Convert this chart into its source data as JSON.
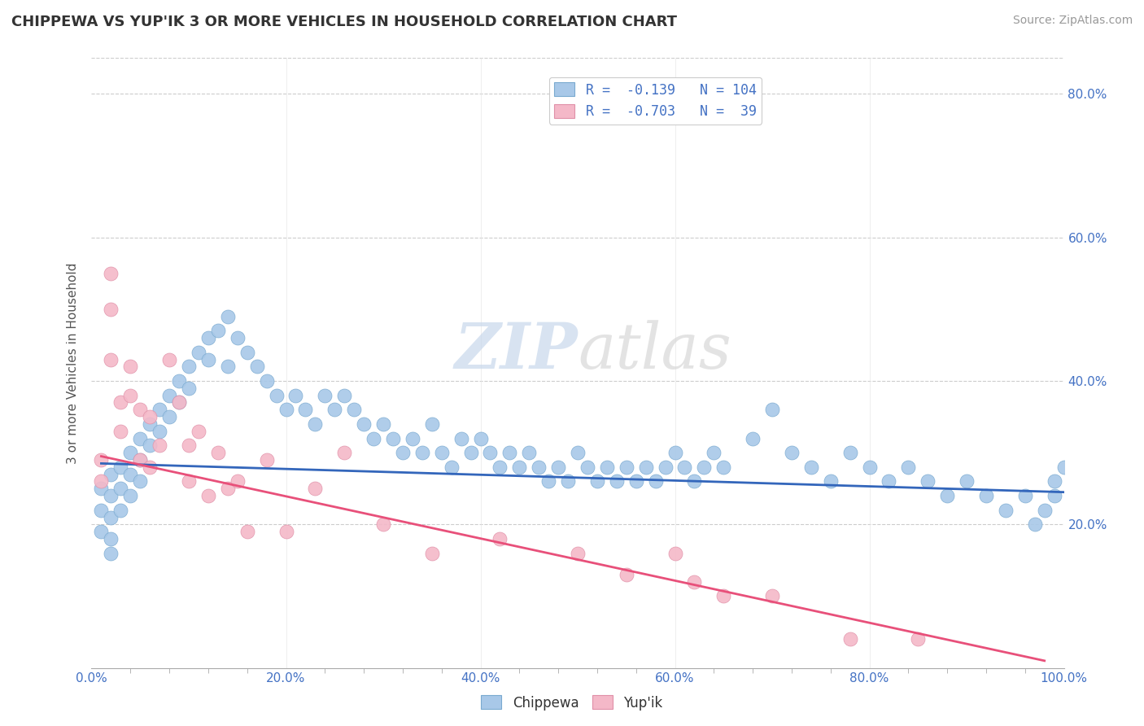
{
  "title": "CHIPPEWA VS YUP'IK 3 OR MORE VEHICLES IN HOUSEHOLD CORRELATION CHART",
  "source_text": "Source: ZipAtlas.com",
  "ylabel": "3 or more Vehicles in Household",
  "xlim": [
    0.0,
    1.0
  ],
  "ylim": [
    0.0,
    0.85
  ],
  "xtick_labels": [
    "0.0%",
    "",
    "",
    "",
    "",
    "",
    "",
    "",
    "",
    "",
    "20.0%",
    "",
    "",
    "",
    "",
    "",
    "",
    "",
    "",
    "",
    "40.0%",
    "",
    "",
    "",
    "",
    "",
    "",
    "",
    "",
    "",
    "60.0%",
    "",
    "",
    "",
    "",
    "",
    "",
    "",
    "",
    "",
    "80.0%",
    "",
    "",
    "",
    "",
    "",
    "",
    "",
    "",
    "",
    "100.0%"
  ],
  "xtick_vals": [
    0.0,
    0.02,
    0.04,
    0.06,
    0.08,
    0.1,
    0.12,
    0.14,
    0.16,
    0.18,
    0.2,
    0.22,
    0.24,
    0.26,
    0.28,
    0.3,
    0.32,
    0.34,
    0.36,
    0.38,
    0.4,
    0.42,
    0.44,
    0.46,
    0.48,
    0.5,
    0.52,
    0.54,
    0.56,
    0.58,
    0.6,
    0.62,
    0.64,
    0.66,
    0.68,
    0.7,
    0.72,
    0.74,
    0.76,
    0.78,
    0.8,
    0.82,
    0.84,
    0.86,
    0.88,
    0.9,
    0.92,
    0.94,
    0.96,
    0.98,
    1.0
  ],
  "ytick_vals": [
    0.2,
    0.4,
    0.6,
    0.8
  ],
  "ytick_labels": [
    "20.0%",
    "40.0%",
    "60.0%",
    "80.0%"
  ],
  "chippewa_color": "#A8C8E8",
  "chippewa_edge_color": "#7AAAD0",
  "yupik_color": "#F4B8C8",
  "yupik_edge_color": "#E090A8",
  "trend_chippewa_color": "#3366BB",
  "trend_yupik_color": "#E8507A",
  "watermark": "ZIPatlas",
  "background_color": "#FFFFFF",
  "grid_color": "#CCCCCC",
  "chippewa_x": [
    0.01,
    0.01,
    0.01,
    0.02,
    0.02,
    0.02,
    0.02,
    0.02,
    0.03,
    0.03,
    0.03,
    0.04,
    0.04,
    0.04,
    0.05,
    0.05,
    0.05,
    0.06,
    0.06,
    0.07,
    0.07,
    0.08,
    0.08,
    0.09,
    0.09,
    0.1,
    0.1,
    0.11,
    0.12,
    0.12,
    0.13,
    0.14,
    0.14,
    0.15,
    0.16,
    0.17,
    0.18,
    0.19,
    0.2,
    0.21,
    0.22,
    0.23,
    0.24,
    0.25,
    0.26,
    0.27,
    0.28,
    0.29,
    0.3,
    0.31,
    0.32,
    0.33,
    0.34,
    0.35,
    0.36,
    0.37,
    0.38,
    0.39,
    0.4,
    0.41,
    0.42,
    0.43,
    0.44,
    0.45,
    0.46,
    0.47,
    0.48,
    0.49,
    0.5,
    0.51,
    0.52,
    0.53,
    0.54,
    0.55,
    0.56,
    0.57,
    0.58,
    0.59,
    0.6,
    0.61,
    0.62,
    0.63,
    0.64,
    0.65,
    0.68,
    0.7,
    0.72,
    0.74,
    0.76,
    0.78,
    0.8,
    0.82,
    0.84,
    0.86,
    0.88,
    0.9,
    0.92,
    0.94,
    0.96,
    0.98,
    0.99,
    1.0,
    0.99,
    0.97
  ],
  "chippewa_y": [
    0.25,
    0.22,
    0.19,
    0.27,
    0.24,
    0.21,
    0.18,
    0.16,
    0.28,
    0.25,
    0.22,
    0.3,
    0.27,
    0.24,
    0.32,
    0.29,
    0.26,
    0.34,
    0.31,
    0.36,
    0.33,
    0.38,
    0.35,
    0.4,
    0.37,
    0.42,
    0.39,
    0.44,
    0.46,
    0.43,
    0.47,
    0.49,
    0.42,
    0.46,
    0.44,
    0.42,
    0.4,
    0.38,
    0.36,
    0.38,
    0.36,
    0.34,
    0.38,
    0.36,
    0.38,
    0.36,
    0.34,
    0.32,
    0.34,
    0.32,
    0.3,
    0.32,
    0.3,
    0.34,
    0.3,
    0.28,
    0.32,
    0.3,
    0.32,
    0.3,
    0.28,
    0.3,
    0.28,
    0.3,
    0.28,
    0.26,
    0.28,
    0.26,
    0.3,
    0.28,
    0.26,
    0.28,
    0.26,
    0.28,
    0.26,
    0.28,
    0.26,
    0.28,
    0.3,
    0.28,
    0.26,
    0.28,
    0.3,
    0.28,
    0.32,
    0.36,
    0.3,
    0.28,
    0.26,
    0.3,
    0.28,
    0.26,
    0.28,
    0.26,
    0.24,
    0.26,
    0.24,
    0.22,
    0.24,
    0.22,
    0.24,
    0.28,
    0.26,
    0.2
  ],
  "yupik_x": [
    0.01,
    0.01,
    0.02,
    0.02,
    0.02,
    0.03,
    0.03,
    0.04,
    0.04,
    0.05,
    0.05,
    0.06,
    0.06,
    0.07,
    0.08,
    0.09,
    0.1,
    0.1,
    0.11,
    0.12,
    0.13,
    0.14,
    0.15,
    0.16,
    0.18,
    0.2,
    0.23,
    0.26,
    0.3,
    0.35,
    0.42,
    0.5,
    0.55,
    0.6,
    0.62,
    0.65,
    0.7,
    0.78,
    0.85
  ],
  "yupik_y": [
    0.29,
    0.26,
    0.5,
    0.55,
    0.43,
    0.37,
    0.33,
    0.42,
    0.38,
    0.36,
    0.29,
    0.35,
    0.28,
    0.31,
    0.43,
    0.37,
    0.31,
    0.26,
    0.33,
    0.24,
    0.3,
    0.25,
    0.26,
    0.19,
    0.29,
    0.19,
    0.25,
    0.3,
    0.2,
    0.16,
    0.18,
    0.16,
    0.13,
    0.16,
    0.12,
    0.1,
    0.1,
    0.04,
    0.04
  ],
  "trend_chippewa_x0": 0.01,
  "trend_chippewa_x1": 1.0,
  "trend_chippewa_y0": 0.285,
  "trend_chippewa_y1": 0.245,
  "trend_yupik_x0": 0.01,
  "trend_yupik_x1": 0.98,
  "trend_yupik_y0": 0.295,
  "trend_yupik_y1": 0.01
}
